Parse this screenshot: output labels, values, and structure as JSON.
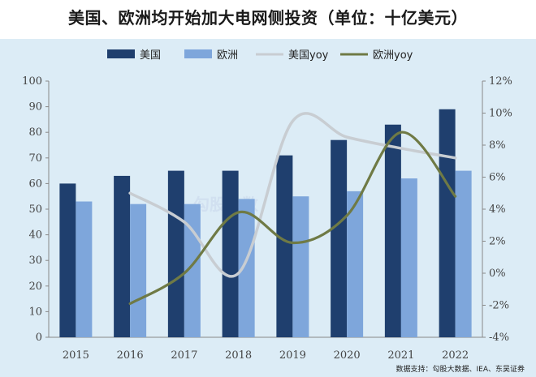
{
  "title": "美国、欧洲均开始加大电网侧投资（单位：十亿美元）",
  "source": "数据支持：勾股大数据、IEA、东吴证券",
  "watermark": "勾股大数",
  "colors": {
    "us_bar": "#1f3f6e",
    "eu_bar": "#7ea6db",
    "us_yoy": "#c8cdd2",
    "eu_yoy": "#6f7a45",
    "background": "#dcecf6"
  },
  "chart_data": {
    "type": "bar",
    "categories": [
      "2015",
      "2016",
      "2017",
      "2018",
      "2019",
      "2020",
      "2021",
      "2022"
    ],
    "series": [
      {
        "name": "美国",
        "kind": "bar",
        "axis": "left",
        "values": [
          60,
          63,
          65,
          65,
          71,
          77,
          83,
          89
        ]
      },
      {
        "name": "欧洲",
        "kind": "bar",
        "axis": "left",
        "values": [
          53,
          52,
          52,
          54,
          55,
          57,
          62,
          65
        ]
      },
      {
        "name": "美国yoy",
        "kind": "line",
        "axis": "right",
        "values": [
          null,
          5.0,
          3.2,
          0.0,
          9.5,
          8.5,
          7.8,
          7.2
        ]
      },
      {
        "name": "欧洲yoy",
        "kind": "line",
        "axis": "right",
        "values": [
          null,
          -1.9,
          0.0,
          3.8,
          1.9,
          3.6,
          8.8,
          4.8
        ]
      }
    ],
    "ylim_left": [
      0,
      100
    ],
    "yticks_left": [
      "0",
      "10",
      "20",
      "30",
      "40",
      "50",
      "60",
      "70",
      "80",
      "90",
      "100"
    ],
    "ylim_right": [
      -4,
      12
    ],
    "yticks_right": [
      "-4%",
      "-2%",
      "0%",
      "2%",
      "4%",
      "6%",
      "8%",
      "10%",
      "12%"
    ],
    "legend_position": "top-center",
    "grid": false
  }
}
